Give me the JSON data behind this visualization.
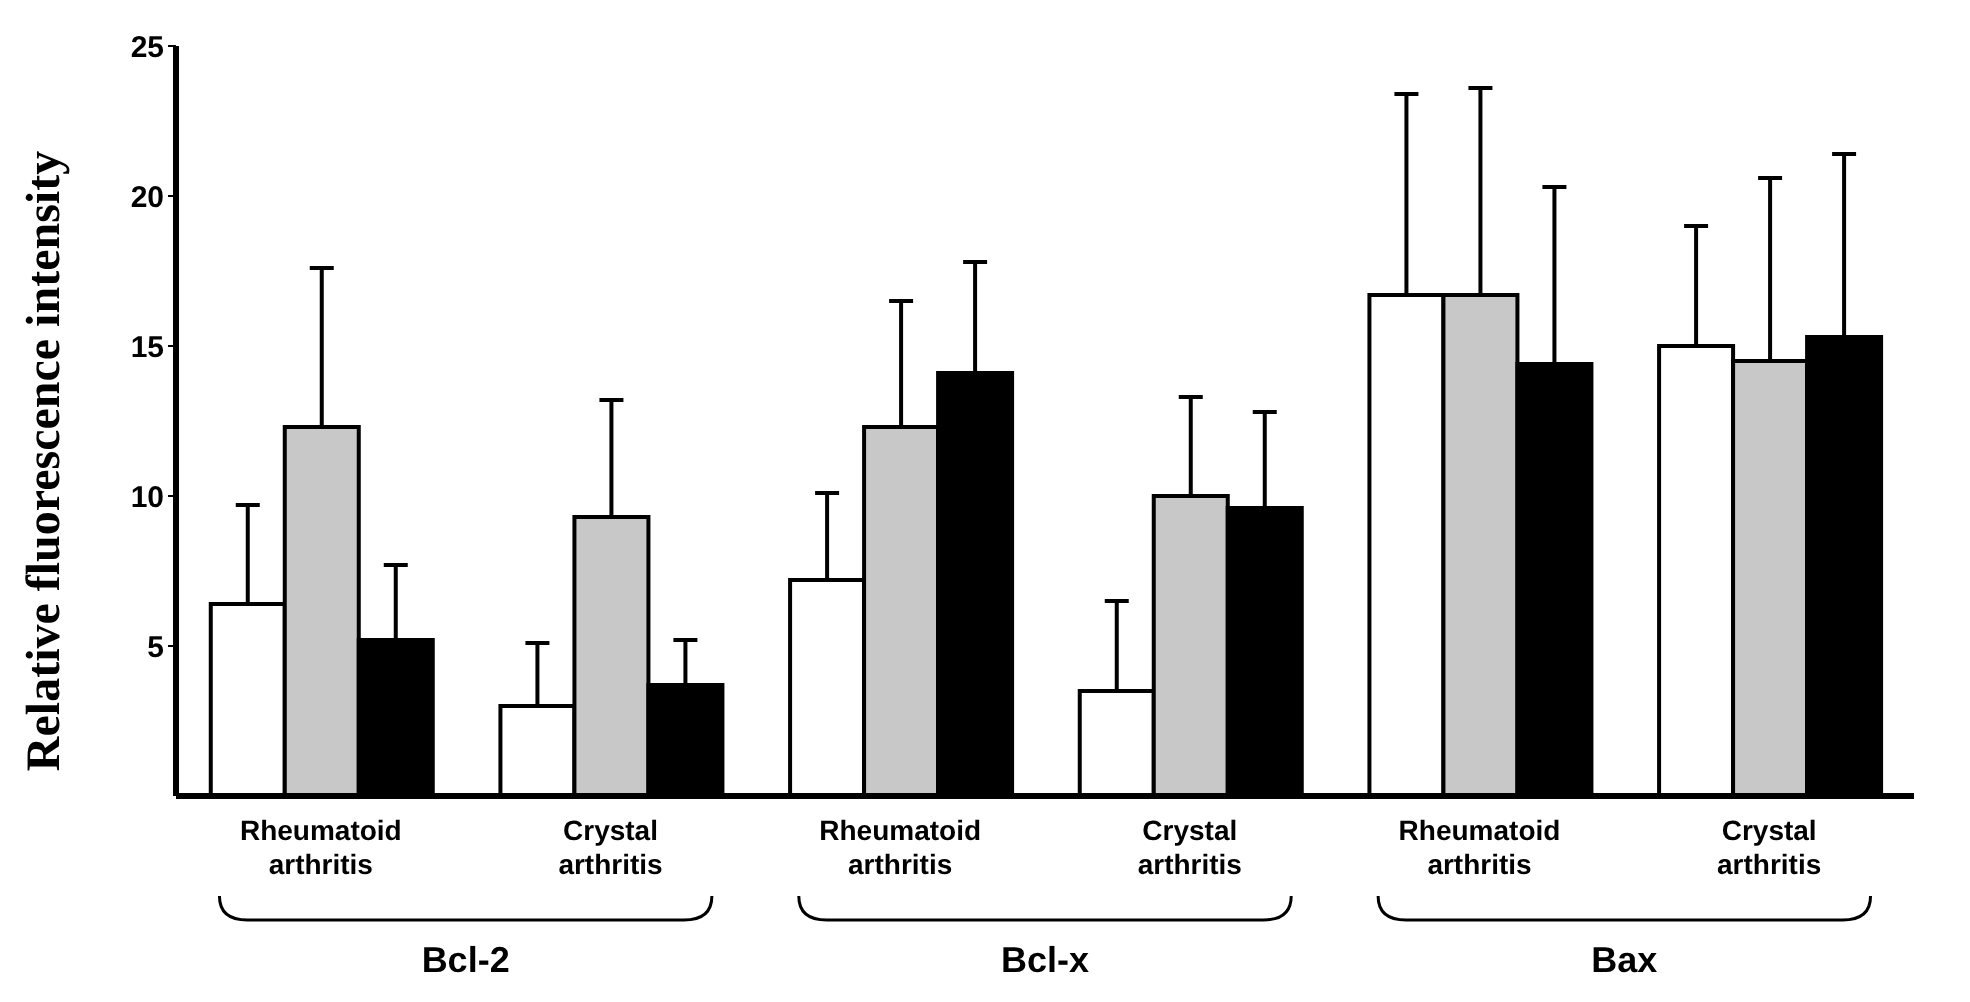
{
  "chart_data": {
    "type": "bar",
    "ylabel": "Relative fluorescence intensity",
    "categories": [
      "Rheumatoid arthritis",
      "Crystal arthritis",
      "Rheumatoid arthritis",
      "Crystal arthritis",
      "Rheumatoid arthritis",
      "Crystal arthritis"
    ],
    "series": [
      {
        "color": "#ffffff",
        "values": [
          6.4,
          3.0,
          7.2,
          3.5,
          16.7,
          15.0
        ],
        "errors": [
          [
            6.4,
            9.7
          ],
          [
            3.0,
            5.1
          ],
          [
            7.2,
            10.1
          ],
          [
            3.5,
            6.5
          ],
          [
            16.7,
            23.4
          ],
          [
            15.0,
            19.0
          ]
        ]
      },
      {
        "color": "#c8c8c8",
        "values": [
          12.3,
          9.3,
          12.3,
          10.0,
          16.7,
          14.5
        ],
        "errors": [
          [
            12.3,
            17.6
          ],
          [
            9.3,
            13.2
          ],
          [
            12.3,
            16.5
          ],
          [
            10.0,
            13.3
          ],
          [
            16.7,
            23.6
          ],
          [
            14.5,
            20.6
          ]
        ]
      },
      {
        "color": "#000000",
        "values": [
          5.2,
          3.7,
          14.1,
          9.6,
          14.4,
          15.3
        ],
        "errors": [
          [
            5.2,
            7.7
          ],
          [
            3.7,
            5.2
          ],
          [
            14.1,
            17.8
          ],
          [
            9.6,
            12.8
          ],
          [
            14.4,
            20.3
          ],
          [
            15.3,
            21.4
          ]
        ]
      }
    ],
    "ylim": [
      0,
      25
    ],
    "yticks": [
      5,
      10,
      15,
      20,
      25
    ],
    "annotations": [
      "Bcl-2",
      "Bcl-x",
      "Bax"
    ]
  }
}
